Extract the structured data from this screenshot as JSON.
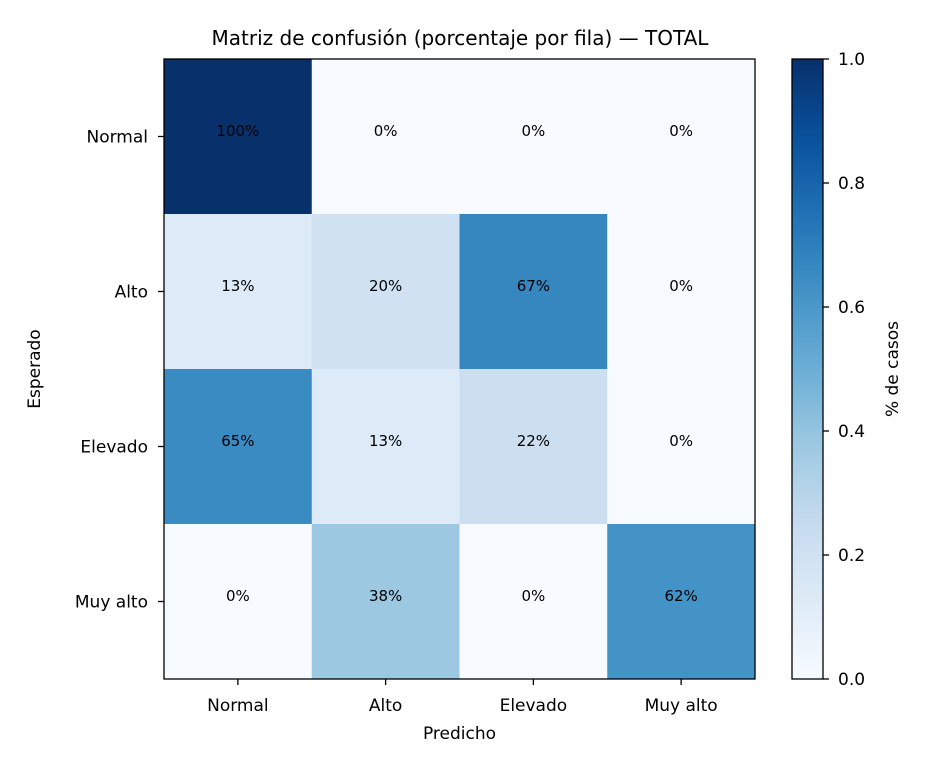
{
  "chart_data": {
    "type": "heatmap",
    "title": "Matriz de confusión (porcentaje por fila) — TOTAL",
    "xlabel": "Predicho",
    "ylabel": "Esperado",
    "x_categories": [
      "Normal",
      "Alto",
      "Elevado",
      "Muy alto"
    ],
    "y_categories": [
      "Normal",
      "Alto",
      "Elevado",
      "Muy alto"
    ],
    "values": [
      [
        1.0,
        0.0,
        0.0,
        0.0
      ],
      [
        0.13,
        0.2,
        0.67,
        0.0
      ],
      [
        0.65,
        0.13,
        0.22,
        0.0
      ],
      [
        0.0,
        0.38,
        0.0,
        0.62
      ]
    ],
    "cell_labels": [
      [
        "100%",
        "0%",
        "0%",
        "0%"
      ],
      [
        "13%",
        "20%",
        "67%",
        "0%"
      ],
      [
        "65%",
        "13%",
        "22%",
        "0%"
      ],
      [
        "0%",
        "38%",
        "0%",
        "62%"
      ]
    ],
    "colormap": "Blues",
    "colorbar": {
      "label": "% de casos",
      "range": [
        0.0,
        1.0
      ],
      "ticks": [
        0.0,
        0.2,
        0.4,
        0.6,
        0.8,
        1.0
      ],
      "tick_labels": [
        "0.0",
        "0.2",
        "0.4",
        "0.6",
        "0.8",
        "1.0"
      ]
    }
  }
}
